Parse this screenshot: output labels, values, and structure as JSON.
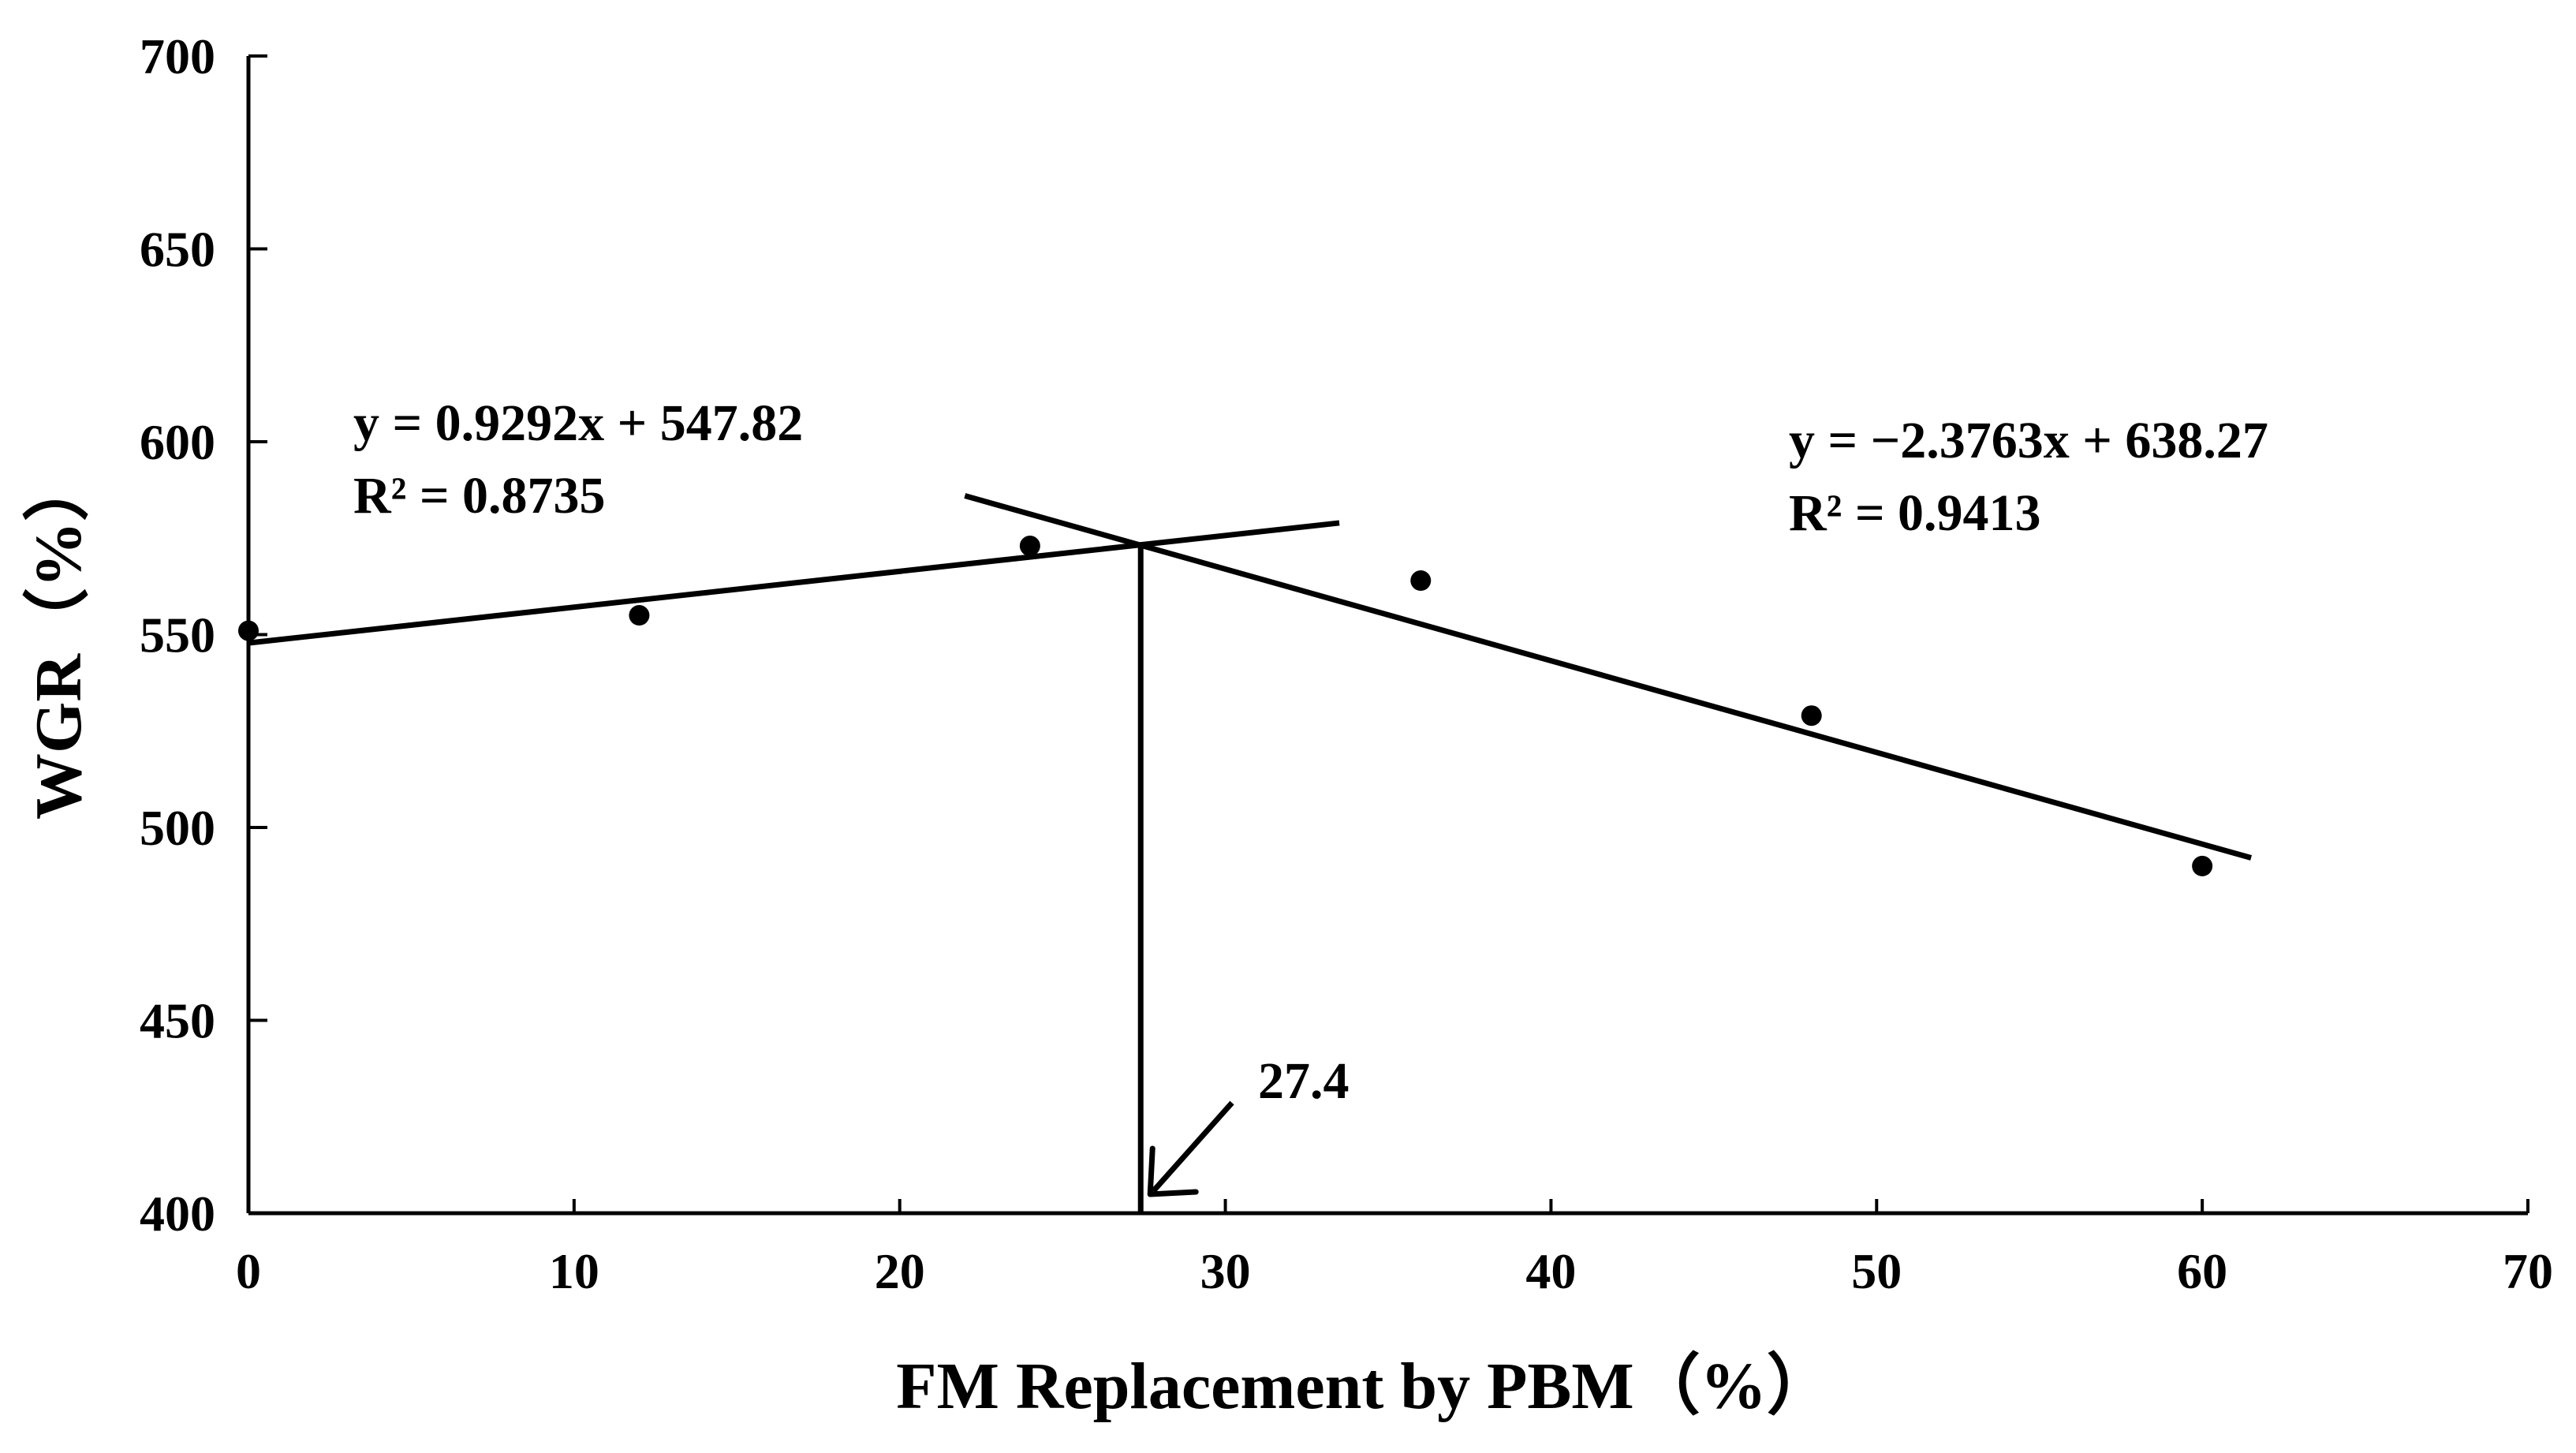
{
  "chart_data": {
    "type": "scatter",
    "title": "",
    "xlabel": "FM Replacement by PBM（%）",
    "ylabel": "WGR（%）",
    "xlim": [
      0,
      70
    ],
    "ylim": [
      400,
      700
    ],
    "xticks": [
      0,
      10,
      20,
      30,
      40,
      50,
      60,
      70
    ],
    "yticks": [
      400,
      450,
      500,
      550,
      600,
      650,
      700
    ],
    "grid": false,
    "legend": "none",
    "series": [
      {
        "points": [
          {
            "x": 0,
            "y": 551
          },
          {
            "x": 12,
            "y": 555
          },
          {
            "x": 24,
            "y": 573
          },
          {
            "x": 36,
            "y": 564
          },
          {
            "x": 48,
            "y": 529
          },
          {
            "x": 60,
            "y": 490
          }
        ]
      }
    ],
    "fits": [
      {
        "slope": 0.9292,
        "intercept": 547.82,
        "x_range": [
          0,
          33.5
        ],
        "equation": "y = 0.9292x + 547.82",
        "r2": "R² = 0.8735"
      },
      {
        "slope": -2.3763,
        "intercept": 638.27,
        "x_range": [
          22,
          61.5
        ],
        "equation": "y = −2.3763x + 638.27",
        "r2": "R² = 0.9413"
      }
    ],
    "breakpoint": {
      "x": 27.4,
      "label": "27.4"
    },
    "colors": {
      "line": "#000000",
      "point": "#000000",
      "background": "#ffffff"
    }
  }
}
